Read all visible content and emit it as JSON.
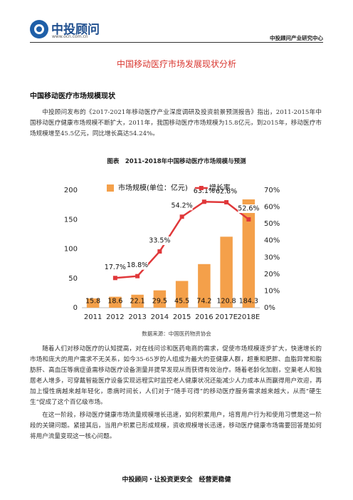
{
  "header": {
    "logo": "中投顾问",
    "url": "www.ocn.com.cn",
    "right": "中投顾问产业研究中心"
  },
  "title": "中国移动医疗市场发展现状分析",
  "section_heading": "中国移动医疗市场规模现状",
  "paragraphs": [
    "中投顾问发布的《2017-2021年移动医疗产业深度调研及投资前景预测报告》指出，2011-2015年中国移动医疗健康市场规模不断扩大，2011年，我国移动医疗市场规模为15.8亿元，到2015年，移动医疗市场规模增至45.5亿元，同比增长高达54.24%。",
    "随着人们对移动医疗的认知提高，对在线问诊和医药电商的需求，促使市场规模逐步扩大，快速增长的市场和庞大的用户需求不无关系，如今35-65岁的人组成为最大的亚健康人群，超重和肥胖、血脂异常和脂肪肝、高血压等病症亟需移动医疗设备测量并提早发现从而获得有效治疗。随着老龄化加剧，空巢老人和独居老人增多，可穿戴智能医疗设备实现远程实时监控老人健康状况还能减少人力成本从而赢得用户欢迎，再加上慢性病越来越年轻化，患病时间长，人们对于“随手可得”的移动医疗服务需求越来越大，从而“硬生生”促成了这个百亿级市场。",
    "在这一阶段，移动医疗健康市场流量规模增长迅速，如何积累用户，培育用户行为和使用习惯是这一阶段的关键问题。紧接其后，当用户积累已形成规模，资收规模增长迅速，移动医疗健康市场需要回答是如何将用户流量变现这一核心问题。"
  ],
  "figure": {
    "caption": "图表　2011-2018年中国移动医疗市场规模与预测",
    "chart": {
      "type": "bar",
      "categories": [
        "2011",
        "2012",
        "2013",
        "2014",
        "2015",
        "2016",
        "2017E",
        "2018E"
      ],
      "series": [
        {
          "name": "市场规模(单位：亿元)",
          "type": "bar",
          "color": "#f4a04a",
          "values": [
            15.8,
            18.6,
            22.1,
            29.5,
            45.5,
            74.2,
            120.8,
            184.3
          ]
        },
        {
          "name": "增长率",
          "type": "line",
          "axis": "y2",
          "color": "#e0383a",
          "values": [
            null,
            17.7,
            18.8,
            33.5,
            54.2,
            63.1,
            62.8,
            52.6
          ],
          "value_labels": [
            null,
            "17.7%",
            "18.8%",
            "33.5%",
            "54.2%",
            "63.1%",
            "62.8%",
            "52.6%"
          ]
        }
      ],
      "ylim": [
        0,
        200
      ],
      "yticks": [
        0,
        50,
        100,
        150,
        200
      ],
      "y2lim": [
        0,
        70
      ],
      "y2ticks": [
        {
          "value": 0,
          "label": "0%"
        },
        {
          "value": 10,
          "label": "10%"
        },
        {
          "value": 20,
          "label": "20%"
        },
        {
          "value": 30,
          "label": "30%"
        },
        {
          "value": 40,
          "label": "40%"
        },
        {
          "value": 50,
          "label": "50%"
        },
        {
          "value": 60,
          "label": "60%"
        },
        {
          "value": 70,
          "label": "70%"
        }
      ],
      "legend": "top"
    },
    "source": "数据来源：中国医药物资协会"
  },
  "footer": "中投顾问・让投资更安全　经营更稳健"
}
